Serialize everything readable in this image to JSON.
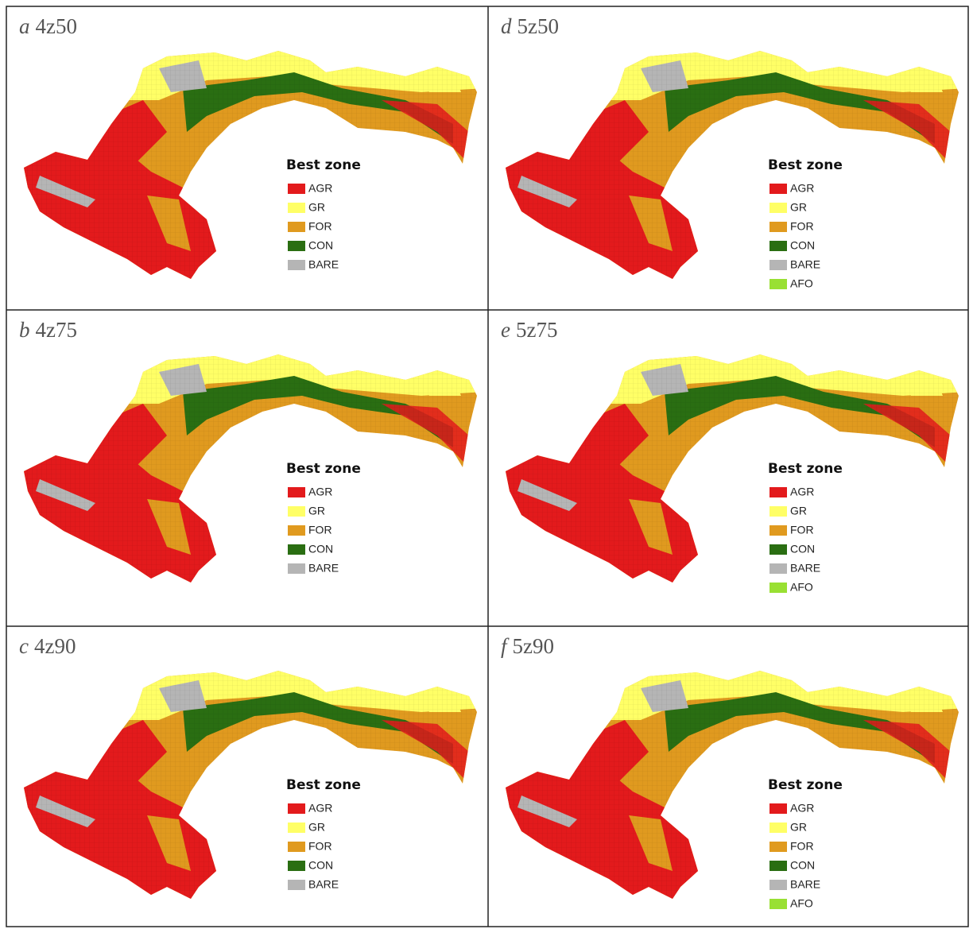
{
  "panels": [
    {
      "letter": "a",
      "code": "4z50",
      "legend": {
        "title": "Best zone",
        "items": [
          {
            "label": "AGR",
            "color": "#e31a1c"
          },
          {
            "label": "GR",
            "color": "#ffff66"
          },
          {
            "label": "FOR",
            "color": "#e09a1f"
          },
          {
            "label": "CON",
            "color": "#2a6e12"
          },
          {
            "label": "BARE",
            "color": "#b5b5b5"
          }
        ]
      }
    },
    {
      "letter": "d",
      "code": "5z50",
      "legend": {
        "title": "Best zone",
        "items": [
          {
            "label": "AGR",
            "color": "#e31a1c"
          },
          {
            "label": "GR",
            "color": "#ffff66"
          },
          {
            "label": "FOR",
            "color": "#e09a1f"
          },
          {
            "label": "CON",
            "color": "#2a6e12"
          },
          {
            "label": "BARE",
            "color": "#b5b5b5"
          },
          {
            "label": "AFO",
            "color": "#99e033"
          }
        ]
      }
    },
    {
      "letter": "b",
      "code": "4z75",
      "legend": {
        "title": "Best zone",
        "items": [
          {
            "label": "AGR",
            "color": "#e31a1c"
          },
          {
            "label": "GR",
            "color": "#ffff66"
          },
          {
            "label": "FOR",
            "color": "#e09a1f"
          },
          {
            "label": "CON",
            "color": "#2a6e12"
          },
          {
            "label": "BARE",
            "color": "#b5b5b5"
          }
        ]
      }
    },
    {
      "letter": "e",
      "code": "5z75",
      "legend": {
        "title": "Best zone",
        "items": [
          {
            "label": "AGR",
            "color": "#e31a1c"
          },
          {
            "label": "GR",
            "color": "#ffff66"
          },
          {
            "label": "FOR",
            "color": "#e09a1f"
          },
          {
            "label": "CON",
            "color": "#2a6e12"
          },
          {
            "label": "BARE",
            "color": "#b5b5b5"
          },
          {
            "label": "AFO",
            "color": "#99e033"
          }
        ]
      }
    },
    {
      "letter": "c",
      "code": "4z90",
      "legend": {
        "title": "Best zone",
        "items": [
          {
            "label": "AGR",
            "color": "#e31a1c"
          },
          {
            "label": "GR",
            "color": "#ffff66"
          },
          {
            "label": "FOR",
            "color": "#e09a1f"
          },
          {
            "label": "CON",
            "color": "#2a6e12"
          },
          {
            "label": "BARE",
            "color": "#b5b5b5"
          }
        ]
      }
    },
    {
      "letter": "f",
      "code": "5z90",
      "legend": {
        "title": "Best zone",
        "items": [
          {
            "label": "AGR",
            "color": "#e31a1c"
          },
          {
            "label": "GR",
            "color": "#ffff66"
          },
          {
            "label": "FOR",
            "color": "#e09a1f"
          },
          {
            "label": "CON",
            "color": "#2a6e12"
          },
          {
            "label": "BARE",
            "color": "#b5b5b5"
          },
          {
            "label": "AFO",
            "color": "#99e033"
          }
        ]
      }
    }
  ]
}
